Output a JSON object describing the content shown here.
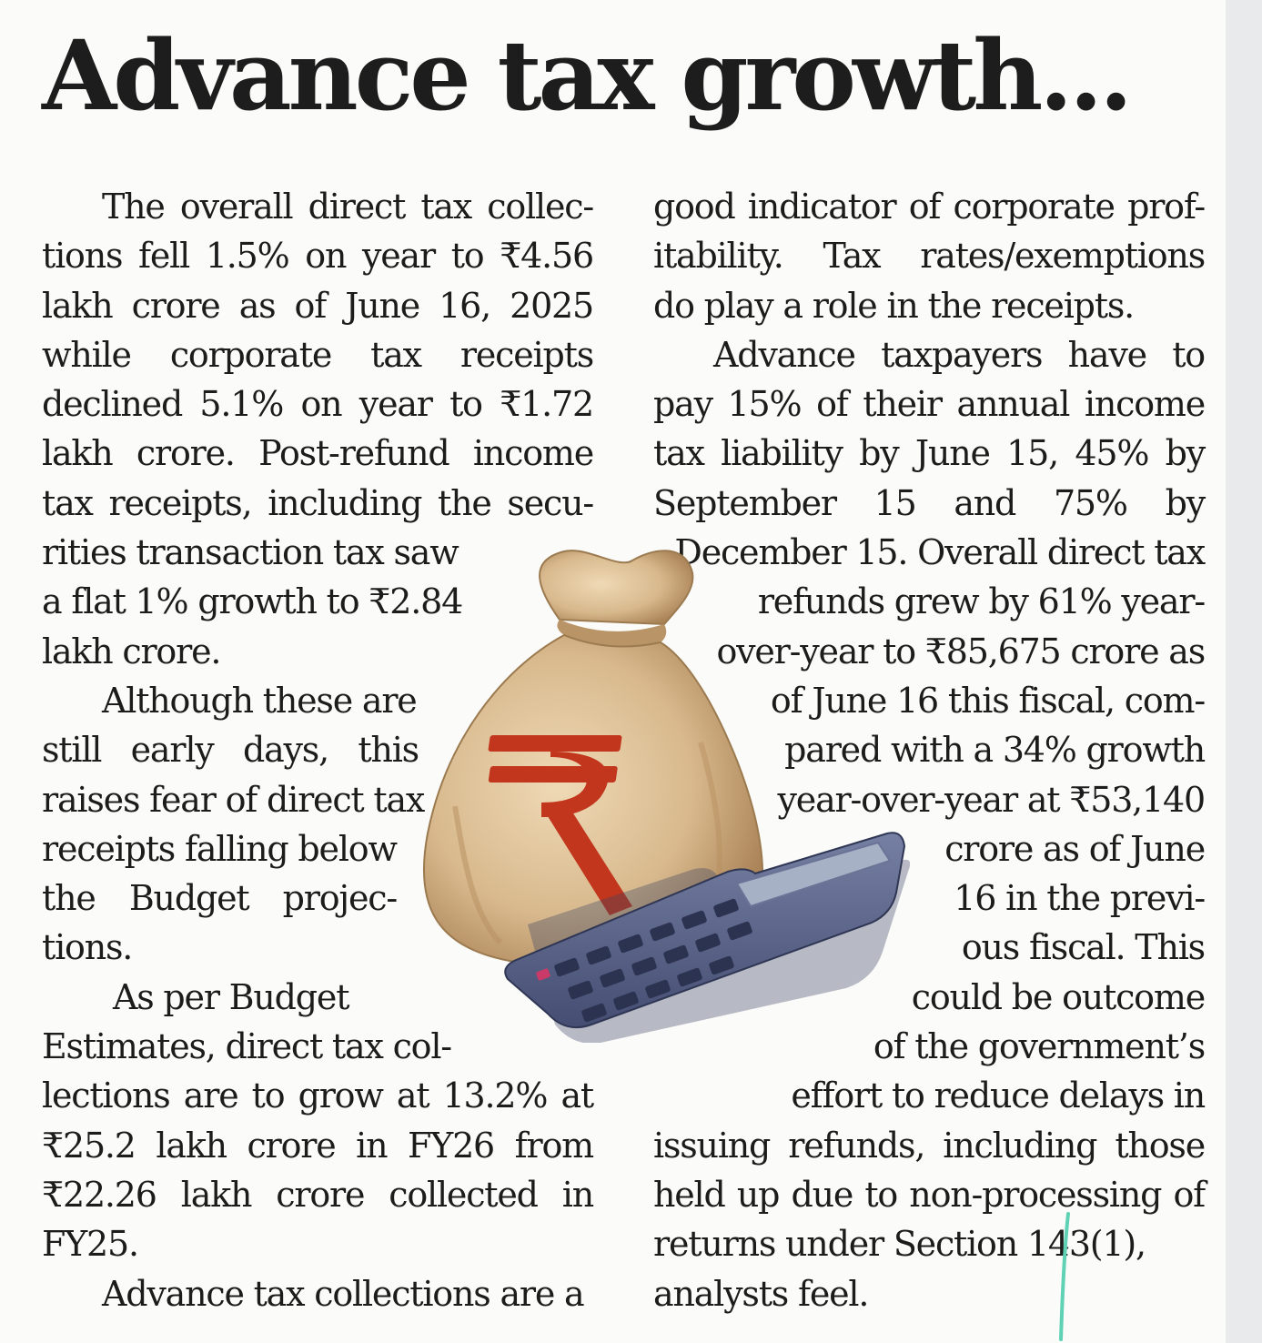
{
  "headline": "Advance tax growth...",
  "left_column": {
    "lines": [
      "The overall direct tax collec-",
      "tions fell 1.5% on year to ₹4.56",
      "lakh crore as of June 16, 2025",
      "while corporate tax receipts",
      "declined 5.1% on year to ₹1.72",
      "lakh crore. Post-refund income",
      "tax receipts, including the secu-",
      "rities transaction tax saw",
      "a flat 1% growth to ₹2.84",
      "lakh crore.",
      "Although these are",
      "still early days, this",
      "raises fear of direct tax",
      "receipts falling below",
      "the Budget projec-",
      "tions.",
      "As per Budget",
      "Estimates, direct tax col-",
      "lections are to grow at 13.2% at",
      "₹25.2 lakh crore in FY26 from",
      "₹22.26 lakh crore collected in",
      "FY25.",
      "Advance tax collections are a"
    ]
  },
  "right_column": {
    "lines": [
      "good indicator of corporate prof-",
      "itability. Tax rates/exemptions",
      "do play a role in the receipts.",
      "Advance taxpayers have to",
      "pay 15% of their annual income",
      "tax liability by June 15, 45% by",
      "September 15 and 75% by",
      "December 15. Overall direct tax",
      "refunds grew by 61% year-",
      "over-year to ₹85,675 crore as",
      "of June 16 this fiscal, com-",
      "pared with a 34% growth",
      "year-over-year at ₹53,140",
      "crore as of June",
      "16 in the previ-",
      "ous fiscal. This",
      "could be outcome",
      "of the government’s",
      "effort to reduce delays in",
      "issuing refunds, including those",
      "held up due to non-processing of",
      "returns under Section 143(1),",
      "analysts feel."
    ]
  },
  "illustration": {
    "symbol": "₹",
    "colors": {
      "bag": "#d8b98d",
      "bag_shadow": "#b58e5e",
      "rupee": "#c2361d",
      "calculator": "#5a6486",
      "calculator_dark": "#3a4262",
      "display": "#a7b1c6"
    }
  }
}
